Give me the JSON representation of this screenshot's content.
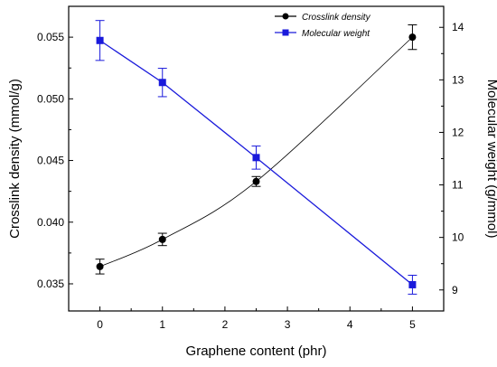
{
  "chart_data": {
    "type": "line",
    "xlabel": "Graphene content (phr)",
    "ylabel_left": "Crosslink density (mmol/g)",
    "ylabel_right": "Molecular weight (g/mmol)",
    "xlim": [
      -0.5,
      5.5
    ],
    "ylim_left": [
      0.0328,
      0.0575
    ],
    "ylim_right": [
      8.6,
      14.4
    ],
    "x_ticks": [
      0,
      1,
      2,
      3,
      4,
      5
    ],
    "y_left_ticks": [
      0.035,
      0.04,
      0.045,
      0.05,
      0.055
    ],
    "y_left_tick_labels": [
      "0.035",
      "0.040",
      "0.045",
      "0.050",
      "0.055"
    ],
    "y_right_ticks": [
      9,
      10,
      11,
      12,
      13,
      14
    ],
    "legend_position": "top-right",
    "grid": false,
    "series": [
      {
        "name": "Crosslink density",
        "axis": "left",
        "color": "#000000",
        "marker": "circle",
        "curve": "smooth",
        "x": [
          0,
          1,
          2.5,
          5
        ],
        "y": [
          0.0364,
          0.0386,
          0.0433,
          0.055
        ],
        "error": [
          0.0006,
          0.0005,
          0.0004,
          0.001
        ]
      },
      {
        "name": "Molecular weight",
        "axis": "right",
        "color": "#1a1adb",
        "marker": "square",
        "curve": "linear",
        "x": [
          0,
          1,
          2.5,
          5
        ],
        "y": [
          13.75,
          12.95,
          11.52,
          9.1
        ],
        "error": [
          0.38,
          0.27,
          0.22,
          0.18
        ]
      }
    ]
  }
}
